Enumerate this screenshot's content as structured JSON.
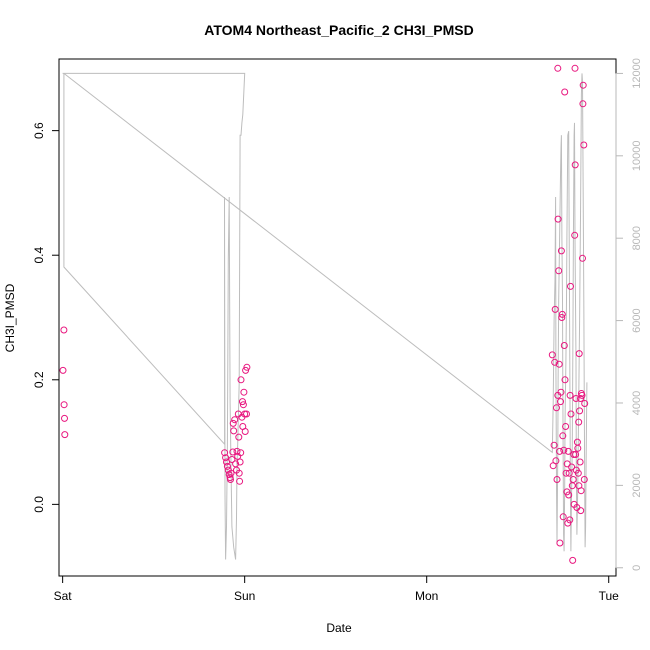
{
  "chart_data": {
    "type": "scatter",
    "title": "ATOM4 Northeast_Pacific_2 CH3I_PMSD",
    "xlabel": "Date",
    "ylabel": "CH3I_PMSD",
    "x_ticks": [
      {
        "label": "Sat",
        "value": 0
      },
      {
        "label": "Sun",
        "value": 1
      },
      {
        "label": "Mon",
        "value": 2
      },
      {
        "label": "Tue",
        "value": 3
      }
    ],
    "xlim": [
      -0.02,
      3.04
    ],
    "ylim": [
      -0.115,
      0.715
    ],
    "y_ticks": [
      0.0,
      0.2,
      0.4,
      0.6
    ],
    "y_tick_labels": [
      "0.0",
      "0.2",
      "0.4",
      "0.6"
    ],
    "y2lim": [
      -200,
      12350
    ],
    "y2_ticks": [
      0,
      2000,
      4000,
      6000,
      8000,
      10000,
      12000
    ],
    "y2_tick_labels": [
      "0",
      "2000",
      "4000",
      "6000",
      "8000",
      "10000",
      "12000"
    ],
    "grid": false,
    "colors": {
      "points": "#e8177f",
      "altitude": "#bdbdbd",
      "axis": "#000000",
      "right_axis": "#b8b8b8"
    },
    "series": [
      {
        "marker": "open-circle",
        "points": [
          [
            0.007,
            0.28
          ],
          [
            0.002,
            0.215
          ],
          [
            0.008,
            0.16
          ],
          [
            0.01,
            0.138
          ],
          [
            0.012,
            0.112
          ],
          [
            0.89,
            0.083
          ],
          [
            0.895,
            0.075
          ],
          [
            0.9,
            0.068
          ],
          [
            0.905,
            0.061
          ],
          [
            0.91,
            0.055
          ],
          [
            0.915,
            0.048
          ],
          [
            0.92,
            0.043
          ],
          [
            0.922,
            0.04
          ],
          [
            0.925,
            0.05
          ],
          [
            0.93,
            0.072
          ],
          [
            0.935,
            0.084
          ],
          [
            0.937,
            0.13
          ],
          [
            0.94,
            0.118
          ],
          [
            0.945,
            0.136
          ],
          [
            0.95,
            0.065
          ],
          [
            0.955,
            0.055
          ],
          [
            0.958,
            0.085
          ],
          [
            0.962,
            0.077
          ],
          [
            0.965,
            0.145
          ],
          [
            0.968,
            0.108
          ],
          [
            0.97,
            0.05
          ],
          [
            0.972,
            0.037
          ],
          [
            0.975,
            0.068
          ],
          [
            0.978,
            0.083
          ],
          [
            0.98,
            0.2
          ],
          [
            0.985,
            0.14
          ],
          [
            0.988,
            0.165
          ],
          [
            0.99,
            0.125
          ],
          [
            0.993,
            0.16
          ],
          [
            0.996,
            0.18
          ],
          [
            1.0,
            0.145
          ],
          [
            1.003,
            0.117
          ],
          [
            1.005,
            0.215
          ],
          [
            1.01,
            0.145
          ],
          [
            1.012,
            0.22
          ],
          [
            2.69,
            0.24
          ],
          [
            2.695,
            0.062
          ],
          [
            2.7,
            0.095
          ],
          [
            2.703,
            0.228
          ],
          [
            2.706,
            0.313
          ],
          [
            2.71,
            0.07
          ],
          [
            2.713,
            0.155
          ],
          [
            2.716,
            0.04
          ],
          [
            2.72,
            0.175
          ],
          [
            2.722,
            0.458
          ],
          [
            2.725,
            0.375
          ],
          [
            2.728,
            0.225
          ],
          [
            2.73,
            0.085
          ],
          [
            2.732,
            -0.062
          ],
          [
            2.735,
            0.165
          ],
          [
            2.738,
            0.18
          ],
          [
            2.74,
            0.407
          ],
          [
            2.742,
            0.3
          ],
          [
            2.745,
            0.305
          ],
          [
            2.748,
            0.11
          ],
          [
            2.75,
            -0.02
          ],
          [
            2.753,
            0.087
          ],
          [
            2.756,
            0.255
          ],
          [
            2.758,
            0.662
          ],
          [
            2.76,
            0.2
          ],
          [
            2.763,
            0.125
          ],
          [
            2.766,
            0.05
          ],
          [
            2.77,
            0.02
          ],
          [
            2.772,
            0.065
          ],
          [
            2.775,
            -0.03
          ],
          [
            2.778,
            0.085
          ],
          [
            2.78,
            0.015
          ],
          [
            2.783,
            0.05
          ],
          [
            2.786,
            -0.025
          ],
          [
            2.788,
            0.175
          ],
          [
            2.79,
            0.35
          ],
          [
            2.793,
            0.145
          ],
          [
            2.796,
            0.06
          ],
          [
            2.8,
            0.03
          ],
          [
            2.802,
            -0.09
          ],
          [
            2.805,
            0.04
          ],
          [
            2.808,
            0.08
          ],
          [
            2.81,
            0.0
          ],
          [
            2.813,
            0.432
          ],
          [
            2.816,
            0.545
          ],
          [
            2.818,
            0.08
          ],
          [
            2.82,
            0.17
          ],
          [
            2.822,
            0.055
          ],
          [
            2.825,
            -0.005
          ],
          [
            2.828,
            0.1
          ],
          [
            2.83,
            0.09
          ],
          [
            2.833,
            0.05
          ],
          [
            2.836,
            0.03
          ],
          [
            2.838,
            0.242
          ],
          [
            2.84,
            0.15
          ],
          [
            2.843,
            0.068
          ],
          [
            2.846,
            -0.01
          ],
          [
            2.848,
            0.022
          ],
          [
            2.85,
            0.178
          ],
          [
            2.853,
            0.175
          ],
          [
            2.856,
            0.395
          ],
          [
            2.858,
            0.643
          ],
          [
            2.86,
            0.673
          ],
          [
            2.863,
            0.577
          ],
          [
            2.866,
            0.04
          ],
          [
            2.868,
            0.162
          ],
          [
            2.72,
            0.7
          ],
          [
            2.815,
            0.7
          ],
          [
            2.835,
            0.132
          ],
          [
            2.845,
            0.17
          ]
        ]
      },
      {
        "axis": "right",
        "style": "line",
        "points": [
          [
            0.0,
            12000
          ],
          [
            0.007,
            12000
          ],
          [
            0.007,
            7300
          ],
          [
            0.89,
            3000
          ],
          [
            0.889,
            9000
          ],
          [
            0.892,
            1800
          ],
          [
            0.895,
            200
          ],
          [
            0.9,
            1000
          ],
          [
            0.905,
            3000
          ],
          [
            0.91,
            7500
          ],
          [
            0.915,
            9000
          ],
          [
            0.92,
            4000
          ],
          [
            0.93,
            1000
          ],
          [
            0.94,
            500
          ],
          [
            0.95,
            200
          ],
          [
            0.955,
            1200
          ],
          [
            0.958,
            2500
          ],
          [
            0.962,
            3000
          ],
          [
            0.97,
            4500
          ],
          [
            0.975,
            10500
          ],
          [
            0.98,
            10500
          ],
          [
            0.985,
            10800
          ],
          [
            0.99,
            11000
          ],
          [
            1.0,
            12000
          ],
          [
            0.007,
            12000
          ],
          [
            2.69,
            2800
          ],
          [
            2.695,
            4000
          ],
          [
            2.7,
            6000
          ],
          [
            2.705,
            7000
          ],
          [
            2.708,
            9000
          ],
          [
            2.71,
            5000
          ],
          [
            2.713,
            2000
          ],
          [
            2.716,
            600
          ],
          [
            2.72,
            2800
          ],
          [
            2.722,
            4500
          ],
          [
            2.725,
            6500
          ],
          [
            2.73,
            8000
          ],
          [
            2.735,
            9500
          ],
          [
            2.738,
            10200
          ],
          [
            2.74,
            10500
          ],
          [
            2.743,
            8000
          ],
          [
            2.746,
            6500
          ],
          [
            2.748,
            4500
          ],
          [
            2.75,
            2500
          ],
          [
            2.752,
            800
          ],
          [
            2.755,
            400
          ],
          [
            2.758,
            2000
          ],
          [
            2.76,
            3500
          ],
          [
            2.765,
            5000
          ],
          [
            2.768,
            6500
          ],
          [
            2.77,
            8000
          ],
          [
            2.775,
            10500
          ],
          [
            2.78,
            10600
          ],
          [
            2.782,
            9000
          ],
          [
            2.785,
            6000
          ],
          [
            2.788,
            3500
          ],
          [
            2.79,
            1500
          ],
          [
            2.792,
            400
          ],
          [
            2.795,
            1500
          ],
          [
            2.8,
            3000
          ],
          [
            2.803,
            5500
          ],
          [
            2.806,
            8000
          ],
          [
            2.81,
            10500
          ],
          [
            2.812,
            10800
          ],
          [
            2.815,
            8000
          ],
          [
            2.82,
            5000
          ],
          [
            2.822,
            2500
          ],
          [
            2.825,
            800
          ],
          [
            2.83,
            2000
          ],
          [
            2.835,
            4000
          ],
          [
            2.84,
            6000
          ],
          [
            2.845,
            8500
          ],
          [
            2.85,
            11500
          ],
          [
            2.853,
            12000
          ],
          [
            2.856,
            11800
          ],
          [
            2.86,
            9000
          ],
          [
            2.863,
            6500
          ],
          [
            2.866,
            4000
          ],
          [
            2.868,
            2000
          ],
          [
            2.87,
            500
          ],
          [
            2.873,
            1000
          ],
          [
            2.876,
            2500
          ],
          [
            2.88,
            4500
          ]
        ]
      }
    ]
  }
}
